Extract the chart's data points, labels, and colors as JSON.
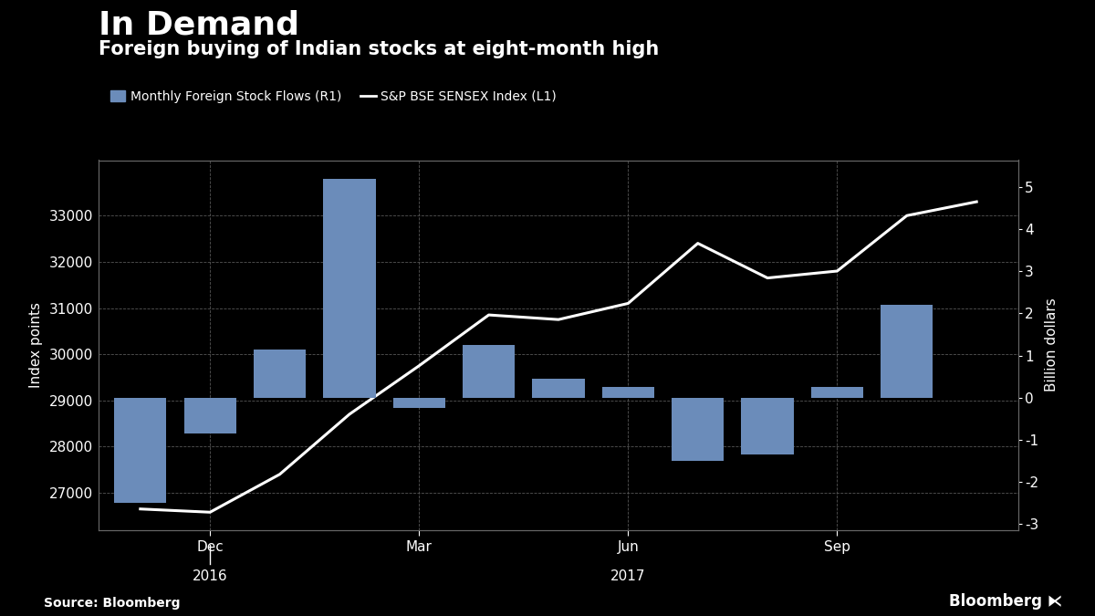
{
  "title_main": "In Demand",
  "title_sub": "Foreign buying of Indian stocks at eight-month high",
  "source": "Source: Bloomberg",
  "legend_bar": "Monthly Foreign Stock Flows (R1)",
  "legend_line": "S&P BSE SENSEX Index (L1)",
  "bar_color": "#6b8cba",
  "line_color": "#ffffff",
  "background_color": "#000000",
  "grid_color": "#555555",
  "month_positions": [
    0,
    1,
    2,
    3,
    4,
    5,
    6,
    7,
    8,
    9,
    10,
    11,
    12
  ],
  "bar_values": [
    -2.5,
    -0.85,
    1.15,
    5.2,
    -0.25,
    1.25,
    0.45,
    0.25,
    -1.5,
    -1.35,
    0.25,
    2.2,
    0.0
  ],
  "sensex_values": [
    26650,
    26580,
    27400,
    28700,
    29750,
    30850,
    30750,
    31100,
    32400,
    31650,
    31800,
    33000,
    33300
  ],
  "ylim_left": [
    26200,
    34200
  ],
  "ylim_right": [
    -3.15,
    5.65
  ],
  "yticks_left": [
    27000,
    28000,
    29000,
    30000,
    31000,
    32000,
    33000
  ],
  "yticks_right": [
    -3,
    -2,
    -1,
    0,
    1,
    2,
    3,
    4,
    5
  ],
  "ylabel_left": "Index points",
  "ylabel_right": "Billion dollars",
  "xtick_labels_major": [
    "Dec",
    "Mar",
    "Jun",
    "Sep"
  ],
  "xtick_positions_major": [
    1,
    4,
    7,
    10
  ],
  "title_main_fontsize": 26,
  "title_sub_fontsize": 15,
  "axis_label_fontsize": 11,
  "tick_fontsize": 11,
  "legend_fontsize": 10
}
